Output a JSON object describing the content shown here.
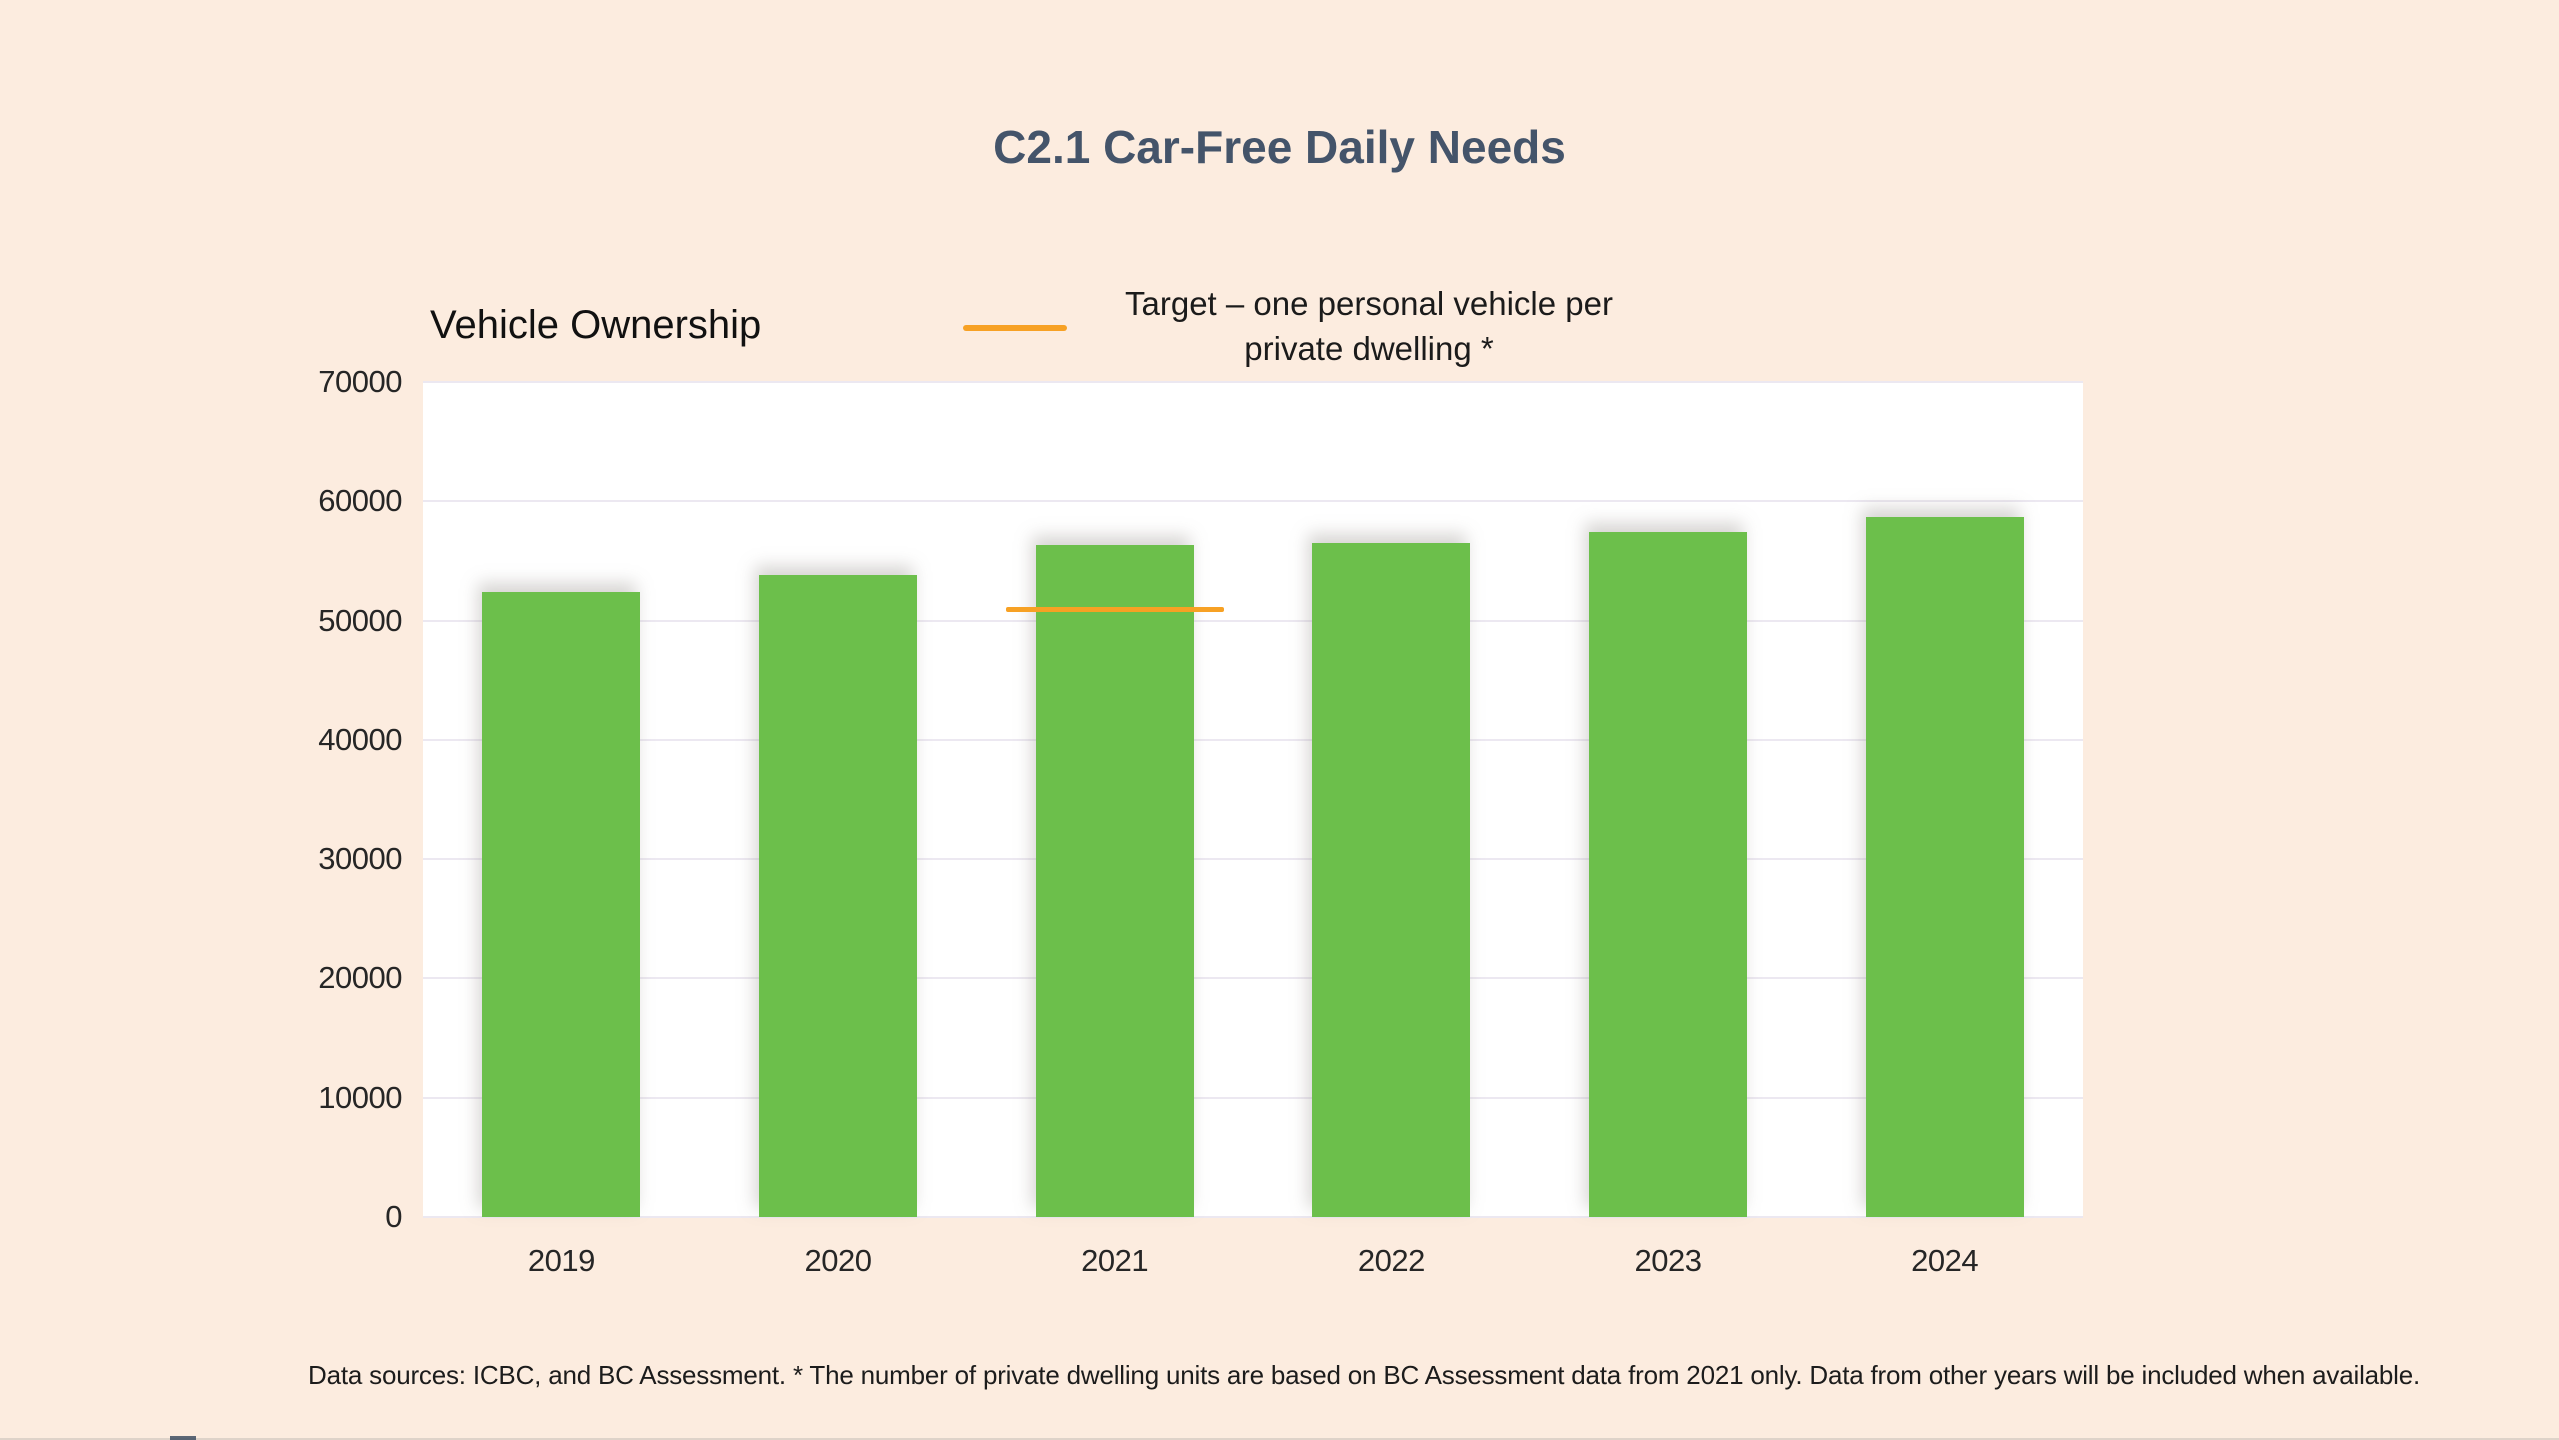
{
  "page": {
    "title": "C2.1 Car-Free Daily Needs",
    "title_color": "#44546A",
    "background_color": "#FCECDF"
  },
  "chart_data": {
    "type": "bar",
    "title": "Vehicle Ownership",
    "categories": [
      "2019",
      "2020",
      "2021",
      "2022",
      "2023",
      "2024"
    ],
    "series": [
      {
        "name": "Vehicle Ownership",
        "values": [
          52400,
          53800,
          56300,
          56500,
          57400,
          58700
        ]
      }
    ],
    "target": {
      "label_lines": [
        "Target – one personal vehicle per",
        "private dwelling *"
      ],
      "value": 51000,
      "applies_to_category": "2021",
      "color": "#F7A124"
    },
    "bar_color": "#6CBF4B",
    "plot_bg": "#FFFFFF",
    "gridline_color": "#ECE8F1",
    "grid": true,
    "legend_position": "top",
    "xlabel": "",
    "ylabel": "",
    "ylim": [
      0,
      70000
    ],
    "ytick_labels": [
      "0",
      "10000",
      "20000",
      "30000",
      "40000",
      "50000",
      "60000",
      "70000"
    ]
  },
  "footnote": {
    "text": "Data sources: ICBC, and BC Assessment. * The number of private dwelling units are based on BC Assessment data from 2021 only. Data from other years will be included when available."
  }
}
